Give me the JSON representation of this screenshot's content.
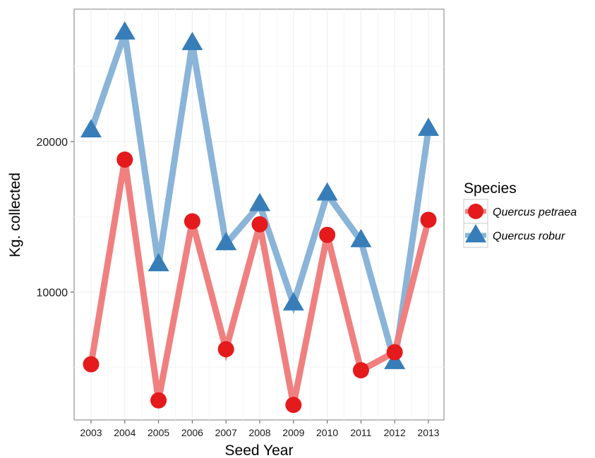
{
  "chart_data": {
    "type": "line",
    "xlabel": "Seed Year",
    "ylabel": "Kg. collected",
    "categories": [
      "2003",
      "2004",
      "2005",
      "2006",
      "2007",
      "2008",
      "2009",
      "2010",
      "2011",
      "2012",
      "2013"
    ],
    "y_ticks": [
      "10000",
      "20000"
    ],
    "ylim": [
      1500,
      28800
    ],
    "grid": true,
    "legend": {
      "title": "Species",
      "placement": "right"
    },
    "series": [
      {
        "name": "Quercus petraea",
        "marker": "circle",
        "color": "#e41a1c",
        "line_color": "#f08080",
        "values": [
          5200,
          18800,
          2800,
          14700,
          6200,
          14500,
          2500,
          13800,
          4800,
          6000,
          14800
        ]
      },
      {
        "name": "Quercus robur",
        "marker": "triangle",
        "color": "#377eb8",
        "line_color": "#8ab4d8",
        "values": [
          20700,
          27200,
          11800,
          26500,
          13200,
          15800,
          9200,
          16500,
          13400,
          5300,
          20800
        ]
      }
    ]
  }
}
